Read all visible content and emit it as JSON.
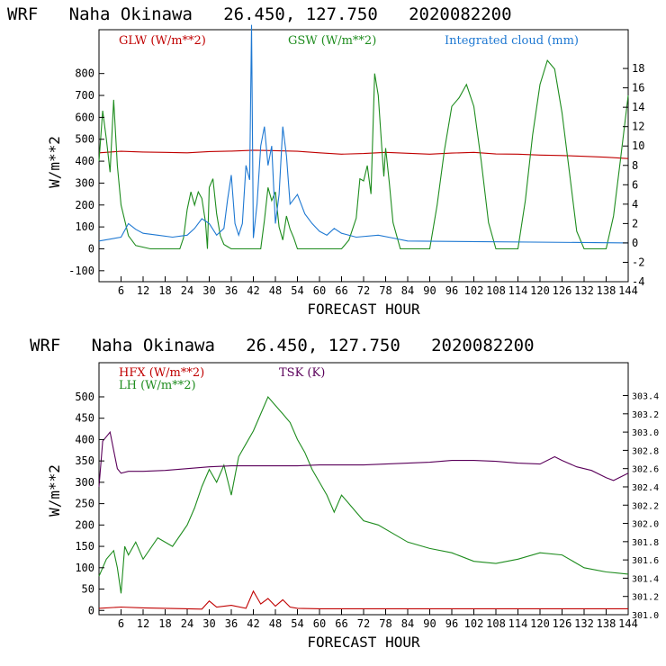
{
  "chart_data": [
    {
      "type": "line",
      "title": "WRF   Naha Okinawa   26.450, 127.750   2020082200",
      "xlabel": "FORECAST HOUR",
      "ylabel": "W/m**2",
      "xlim": [
        0,
        144
      ],
      "ylim": [
        -150,
        1000
      ],
      "y2lim": [
        -4,
        22
      ],
      "xticks": [
        6,
        12,
        18,
        24,
        30,
        36,
        42,
        48,
        54,
        60,
        66,
        72,
        78,
        84,
        90,
        96,
        102,
        108,
        114,
        120,
        126,
        132,
        138,
        144
      ],
      "yticks": [
        -100,
        0,
        100,
        200,
        300,
        400,
        500,
        600,
        700,
        800
      ],
      "y2ticks": [
        -4,
        -2,
        0,
        2,
        4,
        6,
        8,
        10,
        12,
        14,
        16,
        18
      ],
      "series": [
        {
          "name": "GLW (W/m**2)",
          "color": "#c00000",
          "axis": "left",
          "x": [
            0,
            6,
            12,
            18,
            24,
            30,
            36,
            42,
            48,
            54,
            60,
            66,
            72,
            78,
            84,
            90,
            96,
            102,
            108,
            114,
            120,
            126,
            132,
            138,
            144
          ],
          "y": [
            438,
            445,
            442,
            440,
            438,
            444,
            446,
            450,
            448,
            445,
            438,
            432,
            435,
            440,
            436,
            432,
            437,
            440,
            433,
            432,
            428,
            426,
            422,
            418,
            412
          ]
        },
        {
          "name": "GSW (W/m**2)",
          "color": "#1e8c1e",
          "axis": "left",
          "x": [
            0,
            1,
            2,
            3,
            4,
            5,
            6,
            8,
            10,
            14,
            18,
            22,
            23,
            24,
            25,
            26,
            27,
            28,
            29,
            29.5,
            30,
            31,
            32,
            33,
            34,
            36,
            40,
            44,
            45,
            46,
            47,
            48,
            49,
            50,
            51,
            52,
            53,
            54,
            56,
            66,
            68,
            70,
            71,
            72,
            73,
            74,
            75,
            76,
            77,
            77.5,
            78,
            79,
            80,
            82,
            90,
            92,
            94,
            96,
            98,
            100,
            102,
            104,
            106,
            108,
            114,
            116,
            118,
            120,
            122,
            124,
            126,
            128,
            130,
            132,
            138,
            140,
            142,
            144
          ],
          "y": [
            400,
            630,
            500,
            350,
            680,
            380,
            200,
            60,
            15,
            0,
            0,
            0,
            50,
            180,
            260,
            200,
            260,
            230,
            120,
            0,
            280,
            320,
            160,
            60,
            20,
            0,
            0,
            0,
            130,
            280,
            220,
            260,
            100,
            40,
            150,
            90,
            50,
            0,
            0,
            0,
            40,
            140,
            320,
            310,
            380,
            250,
            800,
            700,
            450,
            330,
            460,
            300,
            120,
            0,
            0,
            200,
            450,
            650,
            690,
            750,
            650,
            400,
            120,
            0,
            0,
            220,
            520,
            750,
            860,
            820,
            620,
            350,
            80,
            0,
            0,
            150,
            420,
            700
          ]
        },
        {
          "name": "Integrated cloud (mm)",
          "color": "#1e78d2",
          "axis": "right",
          "x": [
            0,
            6,
            8,
            10,
            12,
            16,
            20,
            24,
            26,
            28,
            30,
            32,
            34,
            35,
            36,
            37,
            38,
            39,
            40,
            41,
            41.5,
            42,
            43,
            44,
            45,
            46,
            47,
            48,
            49,
            50,
            51,
            52,
            54,
            56,
            58,
            60,
            62,
            64,
            66,
            70,
            76,
            80,
            84,
            144
          ],
          "y": [
            0.2,
            0.6,
            2.0,
            1.4,
            1.0,
            0.8,
            0.6,
            0.8,
            1.5,
            2.5,
            2.0,
            0.8,
            1.5,
            4.5,
            7.0,
            2.0,
            0.8,
            2.0,
            8.0,
            6.5,
            22.5,
            0.5,
            4.0,
            10.0,
            12.0,
            8.0,
            10.0,
            2.0,
            5.0,
            12.0,
            9.0,
            4.0,
            5.0,
            3.0,
            2.0,
            1.2,
            0.8,
            1.5,
            1.0,
            0.6,
            0.8,
            0.5,
            0.2,
            0.0
          ]
        }
      ]
    },
    {
      "type": "line",
      "title": "WRF   Naha Okinawa   26.450, 127.750   2020082200",
      "xlabel": "FORECAST HOUR",
      "ylabel": "W/m**2",
      "xlim": [
        0,
        144
      ],
      "ylim": [
        -10,
        580
      ],
      "y2lim": [
        301.0,
        303.76
      ],
      "xticks": [
        6,
        12,
        18,
        24,
        30,
        36,
        42,
        48,
        54,
        60,
        66,
        72,
        78,
        84,
        90,
        96,
        102,
        108,
        114,
        120,
        126,
        132,
        138,
        144
      ],
      "yticks": [
        0,
        50,
        100,
        150,
        200,
        250,
        300,
        350,
        400,
        450,
        500
      ],
      "y2ticks": [
        301.0,
        301.2,
        301.4,
        301.6,
        301.8,
        302.0,
        302.2,
        302.4,
        302.6,
        302.8,
        303.0,
        303.2,
        303.4
      ],
      "series": [
        {
          "name": "HFX (W/m**2)",
          "color": "#c00000",
          "axis": "left",
          "x": [
            0,
            6,
            12,
            18,
            24,
            28,
            30,
            32,
            36,
            40,
            42,
            44,
            46,
            48,
            50,
            52,
            54,
            60,
            66,
            72,
            78,
            84,
            96,
            108,
            120,
            132,
            144
          ],
          "y": [
            5,
            8,
            6,
            5,
            4,
            3,
            22,
            8,
            12,
            5,
            45,
            15,
            28,
            10,
            25,
            8,
            5,
            4,
            4,
            4,
            4,
            4,
            4,
            4,
            4,
            4,
            4
          ]
        },
        {
          "name": "LH (W/m**2)",
          "color": "#1e8c1e",
          "axis": "left",
          "x": [
            0,
            2,
            4,
            5,
            6,
            7,
            8,
            10,
            12,
            16,
            20,
            24,
            26,
            28,
            30,
            32,
            34,
            36,
            38,
            40,
            42,
            44,
            46,
            48,
            50,
            52,
            54,
            56,
            58,
            60,
            62,
            64,
            66,
            68,
            70,
            72,
            76,
            80,
            84,
            90,
            96,
            102,
            108,
            114,
            120,
            126,
            132,
            138,
            144
          ],
          "y": [
            80,
            120,
            140,
            100,
            40,
            150,
            130,
            160,
            120,
            170,
            150,
            200,
            240,
            290,
            330,
            300,
            340,
            270,
            360,
            390,
            420,
            460,
            500,
            480,
            460,
            440,
            400,
            370,
            330,
            300,
            270,
            230,
            270,
            250,
            230,
            210,
            200,
            180,
            160,
            145,
            135,
            115,
            110,
            120,
            135,
            130,
            100,
            90,
            85
          ]
        },
        {
          "name": "TSK (K)",
          "color": "#5a005a",
          "axis": "right",
          "x": [
            0,
            1,
            2,
            3,
            4,
            5,
            6,
            8,
            12,
            18,
            24,
            30,
            36,
            42,
            48,
            54,
            60,
            66,
            72,
            78,
            84,
            90,
            96,
            102,
            108,
            114,
            120,
            124,
            126,
            130,
            134,
            138,
            140,
            144
          ],
          "y": [
            302.4,
            302.9,
            302.95,
            303.0,
            302.8,
            302.6,
            302.55,
            302.57,
            302.57,
            302.58,
            302.6,
            302.62,
            302.63,
            302.63,
            302.63,
            302.63,
            302.64,
            302.64,
            302.64,
            302.65,
            302.66,
            302.67,
            302.69,
            302.69,
            302.68,
            302.66,
            302.65,
            302.73,
            302.69,
            302.62,
            302.58,
            302.5,
            302.47,
            302.55
          ]
        }
      ]
    }
  ]
}
